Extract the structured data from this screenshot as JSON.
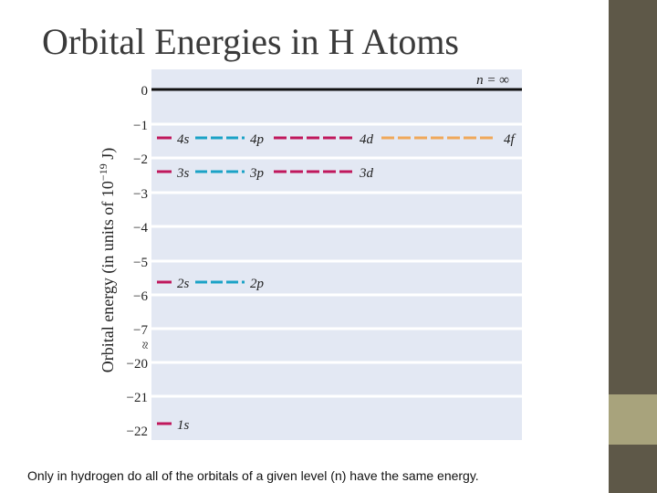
{
  "title": "Orbital Energies in H Atoms",
  "caption": "Only in hydrogen do all of the orbitals of a given level (n) have the same energy.",
  "colors": {
    "s": "#c0185c",
    "p": "#1ba2c6",
    "d": "#c0185c",
    "f": "#f0a85a",
    "panel": "#e3e8f3",
    "side": "#5e5848",
    "accent": "#a8a37c"
  },
  "diagram": {
    "y_axis_label": "Orbital energy (in units of 10",
    "y_axis_label_exp": "−19",
    "y_axis_label_end": " J)",
    "break_symbol": "≈",
    "top_label": "n = ∞",
    "ticks": [
      "0",
      "−1",
      "−2",
      "−3",
      "−4",
      "−5",
      "−6",
      "−7",
      "−20",
      "−21",
      "−22"
    ],
    "levels": [
      {
        "n": "∞",
        "energy": 0
      },
      {
        "n": "4",
        "energy": -1.36,
        "orbitals": [
          "4s",
          "4p",
          "4d",
          "4f"
        ]
      },
      {
        "n": "3",
        "energy": -2.42,
        "orbitals": [
          "3s",
          "3p",
          "3d"
        ]
      },
      {
        "n": "2",
        "energy": -5.45,
        "orbitals": [
          "2s",
          "2p"
        ]
      },
      {
        "n": "1",
        "energy": -21.8,
        "orbitals": [
          "1s"
        ]
      }
    ]
  }
}
